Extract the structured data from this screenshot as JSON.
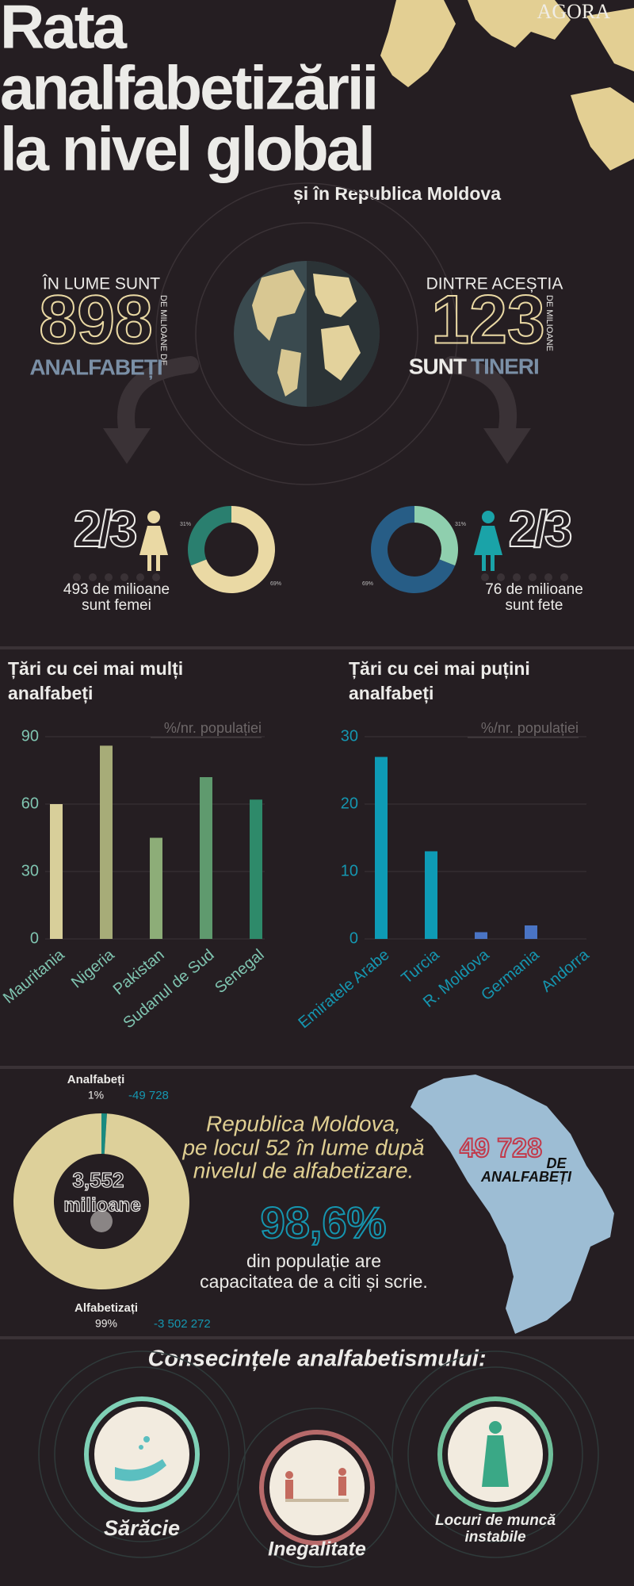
{
  "header": {
    "logo": "AGORA",
    "title": [
      "Rata",
      "analfabetizării",
      "la nivel global"
    ],
    "subtitle": "și în Republica Moldova"
  },
  "stats": {
    "left": {
      "intro": "ÎN LUME SUNT",
      "number": "898",
      "unit": "DE MILIOANE DE",
      "label": "ANALFABEȚI"
    },
    "right": {
      "intro": "DINTRE ACEȘTIA",
      "number": "123",
      "unit": "DE MILIOANE",
      "label_a": "SUNT",
      "label_b": "TINERI"
    }
  },
  "chart_data": [
    {
      "type": "pie",
      "fraction": "2/3",
      "caption": [
        "493 de milioane",
        "sunt femei"
      ],
      "values": [
        31,
        69
      ],
      "value_labels": [
        "31%",
        "69%"
      ],
      "colors": [
        "#2a7f6f",
        "#ead9a4"
      ]
    },
    {
      "type": "pie",
      "fraction": "2/3",
      "caption": [
        "76 de milioane",
        "sunt fete"
      ],
      "values": [
        31,
        69
      ],
      "value_labels": [
        "31%",
        "69%"
      ],
      "colors": [
        "#8fcfae",
        "#275d86"
      ]
    },
    {
      "type": "bar",
      "title": [
        "Țări cu cei mai mulți",
        "analfabeți"
      ],
      "note": "%/nr. populației",
      "categories": [
        "Mauritania",
        "Nigeria",
        "Pakistan",
        "Sudanul de Sud",
        "Senegal"
      ],
      "values": [
        60,
        86,
        45,
        72,
        62
      ],
      "colors": [
        "#d8cf9a",
        "#a7ac78",
        "#8dad78",
        "#5f9a6e",
        "#2e8a6a"
      ],
      "ylim": [
        0,
        90
      ],
      "yticks": [
        0,
        30,
        60,
        90
      ],
      "grid": true
    },
    {
      "type": "bar",
      "title": [
        "Țări cu cei mai puțini",
        "analfabeți"
      ],
      "note": "%/nr. populației",
      "categories": [
        "Emiratele Arabe",
        "Turcia",
        "R. Moldova",
        "Germania",
        "Andorra"
      ],
      "values": [
        27,
        13,
        1,
        2,
        0
      ],
      "colors": [
        "#0e9bb5",
        "#0e9bb5",
        "#4a74c4",
        "#4a74c4",
        "#4a74c4"
      ],
      "ylim": [
        0,
        30
      ],
      "yticks": [
        0,
        10,
        20,
        30
      ],
      "grid": true
    },
    {
      "type": "pie",
      "categories": [
        "Analfabeți",
        "Alfabetizați"
      ],
      "values": [
        1,
        99
      ],
      "value_labels": [
        "1%",
        "99%"
      ],
      "amount_labels": [
        "-49 728",
        "-3 502 272"
      ],
      "total_label": "3,552",
      "total_unit": "milioane",
      "colors": [
        "#1a8a80",
        "#ddd09a"
      ]
    }
  ],
  "moldova": {
    "rank": [
      "Republica Moldova,",
      "pe locul 52 în lume după",
      "nivelul de alfabetizare."
    ],
    "percent": "98,6%",
    "percent_text": [
      "din populație are",
      "capacitatea de a citi și scrie."
    ],
    "map_number": "49 728",
    "map_label": [
      "DE",
      "ANALFABEȚI"
    ]
  },
  "consequences": {
    "title": "Consecințele analfabetismului:",
    "items": [
      [
        "Sărăcie"
      ],
      [
        "Inegalitate"
      ],
      [
        "Locuri de muncă",
        "instabile"
      ]
    ]
  }
}
